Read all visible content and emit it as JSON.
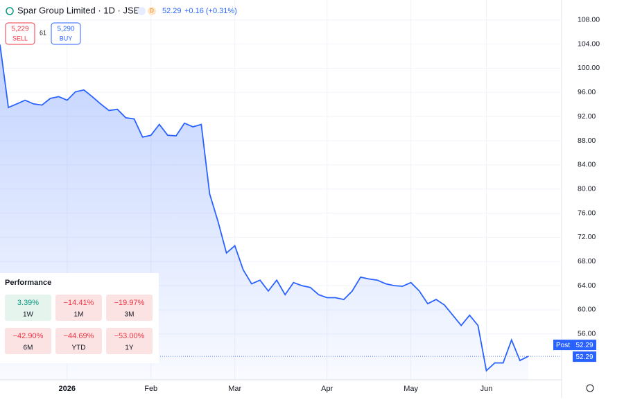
{
  "header": {
    "title": "Spar Group Limited · 1D · JSE",
    "price": "52.29",
    "change": "+0.16 (+0.31%)",
    "sell": {
      "price": "5,229",
      "label": "SELL"
    },
    "spread": "61",
    "buy": {
      "price": "5,290",
      "label": "BUY"
    }
  },
  "chart_data": {
    "type": "line",
    "categories": [
      null,
      null,
      null,
      null,
      null,
      null,
      null,
      null,
      "2026",
      null,
      null,
      null,
      null,
      null,
      null,
      null,
      null,
      null,
      "Feb",
      null,
      null,
      null,
      null,
      null,
      null,
      null,
      null,
      null,
      "Mar",
      null,
      null,
      null,
      null,
      null,
      null,
      null,
      null,
      null,
      null,
      "Apr",
      null,
      null,
      null,
      null,
      null,
      null,
      null,
      null,
      null,
      "May",
      null,
      null,
      null,
      null,
      null,
      null,
      null,
      null,
      "Jun",
      null,
      null,
      null,
      null,
      null
    ],
    "series": [
      {
        "color": "#2962ff",
        "values": [
          103.9,
          93.5,
          94.1,
          94.7,
          94.1,
          93.9,
          95,
          95.3,
          94.7,
          96.1,
          96.4,
          95.3,
          94.1,
          93,
          93.2,
          91.8,
          91.6,
          88.6,
          88.9,
          90.7,
          88.9,
          88.8,
          90.9,
          90.3,
          90.7,
          79.2,
          74.6,
          69.4,
          70.6,
          66.6,
          64.3,
          64.9,
          63.1,
          64.9,
          62.5,
          64.5,
          64,
          63.7,
          62.5,
          62,
          62,
          61.7,
          63.1,
          65.4,
          65.1,
          64.9,
          64.3,
          64,
          63.9,
          64.5,
          63.1,
          61,
          61.7,
          60.8,
          59.1,
          57.4,
          59.1,
          57.4,
          49.9,
          51.2,
          51.2,
          55,
          51.6,
          52.29
        ]
      }
    ],
    "ylim": [
      48.4,
      111.3
    ],
    "yticks": [
      {
        "value": 56,
        "label": "56.00"
      },
      {
        "value": 60,
        "label": "60.00"
      },
      {
        "value": 64,
        "label": "64.00"
      },
      {
        "value": 68,
        "label": "68.00"
      },
      {
        "value": 72,
        "label": "72.00"
      },
      {
        "value": 76,
        "label": "76.00"
      },
      {
        "value": 80,
        "label": "80.00"
      },
      {
        "value": 84,
        "label": "84.00"
      },
      {
        "value": 88,
        "label": "88.00"
      },
      {
        "value": 92,
        "label": "92.00"
      },
      {
        "value": 96,
        "label": "96.00"
      },
      {
        "value": 100,
        "label": "100.00"
      },
      {
        "value": 104,
        "label": "104.00"
      },
      {
        "value": 108,
        "label": "108.00"
      }
    ],
    "grid": true,
    "last_tag": "Post"
  },
  "performance": {
    "title": "Performance",
    "items": [
      {
        "value": "3.39%",
        "label": "1W",
        "color": "#e6f4ee"
      },
      {
        "value": "−14.41%",
        "label": "1M",
        "color": "#fbe3e3"
      },
      {
        "value": "−19.97%",
        "label": "3M",
        "color": "#fbe3e3"
      },
      {
        "value": "−42.90%",
        "label": "6M",
        "color": "#fbe3e3"
      },
      {
        "value": "−44.69%",
        "label": "YTD",
        "color": "#fbe3e3"
      },
      {
        "value": "−53.00%",
        "label": "1Y",
        "color": "#fbe3e3"
      }
    ]
  }
}
